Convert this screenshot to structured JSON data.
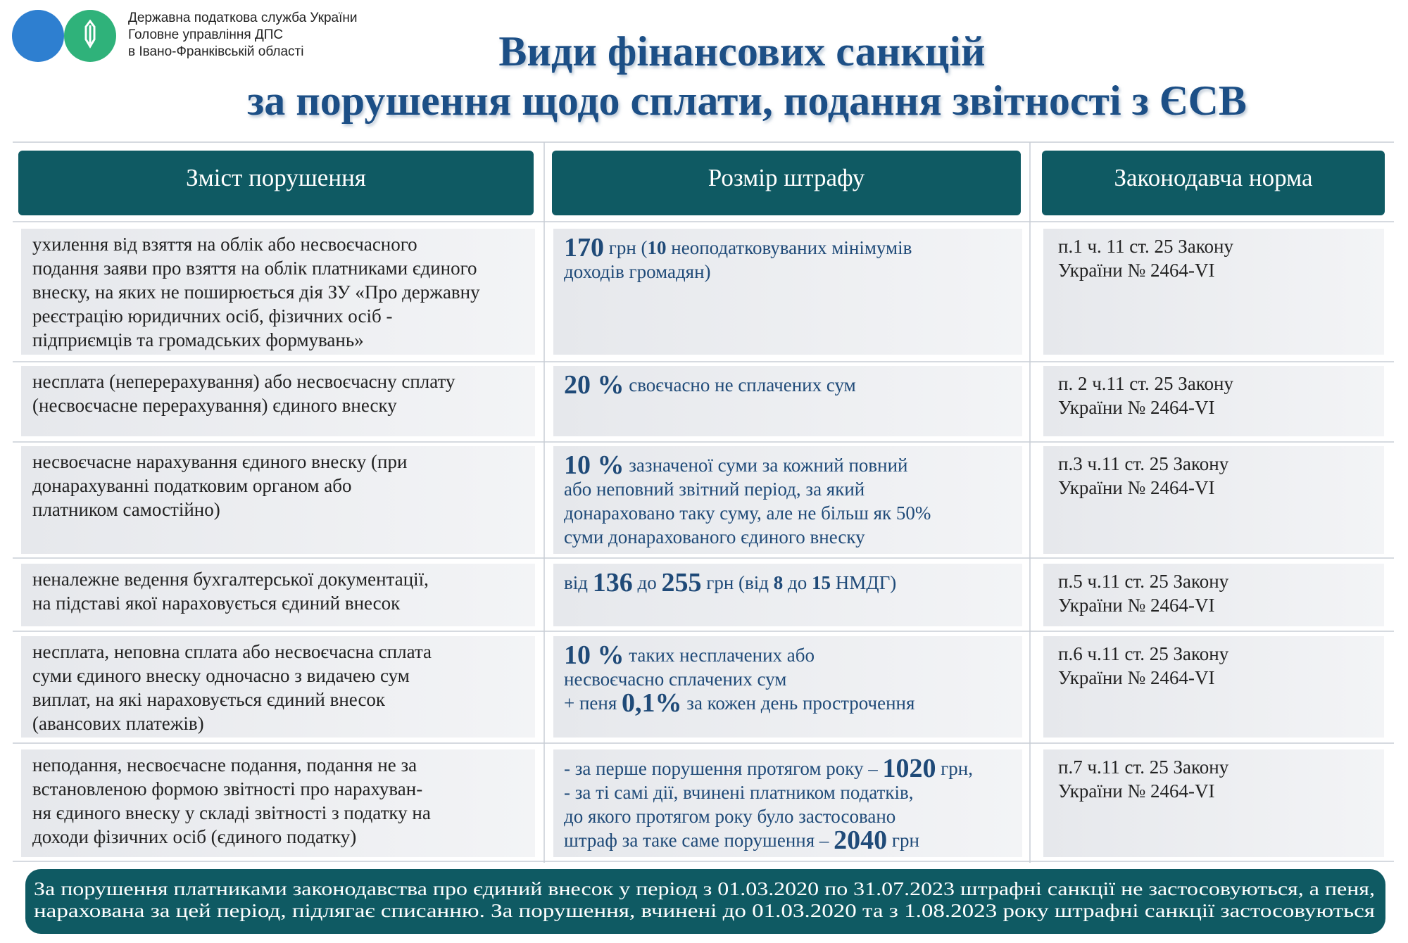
{
  "header": {
    "agency": [
      "Державна податкова служба України",
      "Головне управління ДПС",
      "в Івано-Франківській області"
    ],
    "title": [
      "Види фінансових санкцій",
      "за порушення щодо сплати, подання звітності з ЄСВ"
    ]
  },
  "table": {
    "columns": [
      "Зміст порушення",
      "Розмір штрафу",
      "Законодавча норма"
    ],
    "rows": [
      {
        "violation": [
          "ухилення від взяття на облік або несвоєчасного",
          "подання заяви про взяття на облік платниками єдиного",
          "внеску, на яких не поширюється дія ЗУ «Про державну",
          "реєстрацію юридичних осіб, фізичних осіб -",
          "підприємців та громадських формувань»"
        ],
        "fine": [
          [
            {
              "strong": "170"
            },
            {
              "text": " грн ("
            },
            {
              "bold": "10"
            },
            {
              "text": " неоподатковуваних мінімумів"
            }
          ],
          [
            {
              "text": "доходів громадян)"
            }
          ]
        ],
        "norm": [
          "п.1 ч. 11 ст. 25 Закону",
          "України № 2464-VI"
        ]
      },
      {
        "violation": [
          "несплата (неперерахування) або несвоєчасну сплату",
          "(несвоєчасне перерахування) єдиного внеску"
        ],
        "fine": [
          [
            {
              "strong": "20 %"
            },
            {
              "text": " своєчасно не сплачених сум"
            }
          ]
        ],
        "norm": [
          "п. 2 ч.11 ст. 25 Закону",
          "України № 2464-VI"
        ]
      },
      {
        "violation": [
          "несвоєчасне нарахування єдиного внеску (при",
          "донарахуванні податковим органом або",
          "платником самостійно)"
        ],
        "fine": [
          [
            {
              "strong": "10 %"
            },
            {
              "text": " зазначеної суми за кожний повний"
            }
          ],
          [
            {
              "text": "або неповний звітний період, за який"
            }
          ],
          [
            {
              "text": "донараховано таку суму, але не більш як 50%"
            }
          ],
          [
            {
              "text": "суми донарахованого єдиного внеску"
            }
          ]
        ],
        "norm": [
          "п.3 ч.11 ст. 25 Закону",
          "України № 2464-VI"
        ]
      },
      {
        "violation": [
          "неналежне ведення бухгалтерської документації,",
          "на підставі якої нараховується єдиний внесок"
        ],
        "fine": [
          [
            {
              "text": "від "
            },
            {
              "strong": "136"
            },
            {
              "text": " до "
            },
            {
              "strong": "255"
            },
            {
              "text": " грн (від "
            },
            {
              "bold": "8"
            },
            {
              "text": " до "
            },
            {
              "bold": "15"
            },
            {
              "text": " НМДГ)"
            }
          ]
        ],
        "norm": [
          "п.5 ч.11 ст. 25 Закону",
          "України № 2464-VI"
        ]
      },
      {
        "violation": [
          "несплата, неповна сплата або несвоєчасна сплата",
          "суми єдиного внеску одночасно з видачею сум",
          "виплат, на які нараховується єдиний внесок",
          "(авансових платежів)"
        ],
        "fine": [
          [
            {
              "strong": "10 %"
            },
            {
              "text": " таких несплачених або"
            }
          ],
          [
            {
              "text": "несвоєчасно сплачених сум"
            }
          ],
          [
            {
              "text": "+ пеня "
            },
            {
              "strong": "0,1%"
            },
            {
              "text": " за кожен день прострочення"
            }
          ]
        ],
        "norm": [
          "п.6 ч.11 ст. 25 Закону",
          "України № 2464-VI"
        ]
      },
      {
        "violation": [
          "неподання, несвоєчасне подання, подання не за",
          "встановленою формою звітності про нарахуван-",
          "ня єдиного внеску у складі звітності з податку на",
          "доходи фізичних осіб (єдиного податку)"
        ],
        "fine": [
          [
            {
              "text": "- за перше порушення протягом року – "
            },
            {
              "strong": "1020"
            },
            {
              "text": " грн,"
            }
          ],
          [
            {
              "text": "- за ті самі дії, вчинені платником податків,"
            }
          ],
          [
            {
              "text": "до якого протягом року було застосовано"
            }
          ],
          [
            {
              "text": "штраф за таке саме порушення – "
            },
            {
              "strong": "2040"
            },
            {
              "text": " грн"
            }
          ]
        ],
        "norm": [
          "п.7 ч.11 ст. 25 Закону",
          "України № 2464-VI"
        ]
      }
    ]
  },
  "footer": [
    "За порушення платниками законодавства про єдиний внесок у період з 01.03.2020 по 31.07.2023 штрафні санкції не застосовуються, а пеня,",
    "нарахована за цей період, підлягає списанню. За порушення, вчинені до 01.03.2020 та з 1.08.2023 року штрафні санкції застосовуються"
  ]
}
